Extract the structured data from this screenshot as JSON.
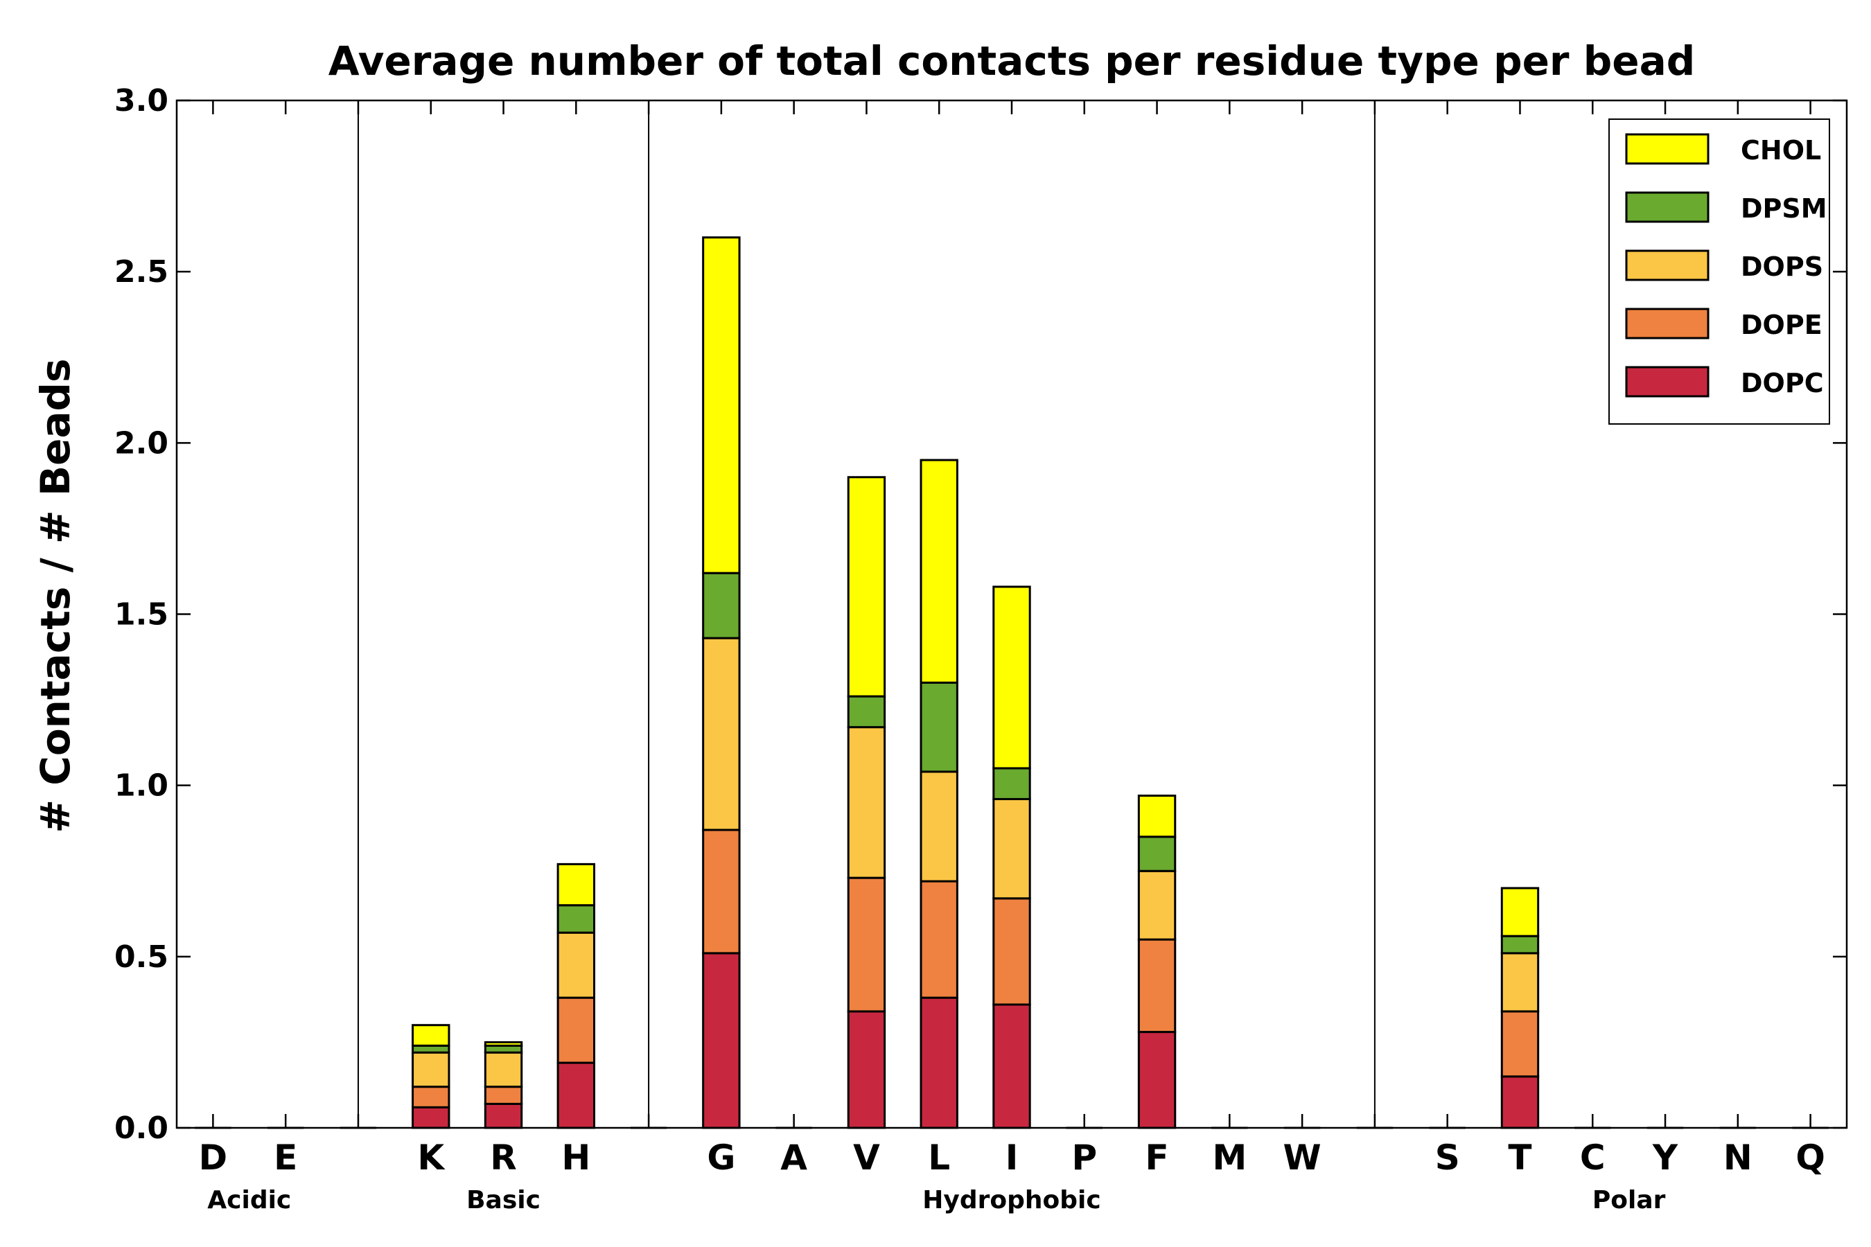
{
  "chart_data": {
    "type": "bar",
    "stacked": true,
    "title": "Average number of total contacts per residue type per bead",
    "ylabel": "# Contacts / # Beads",
    "xlabel": "",
    "ylim": [
      0,
      3.0
    ],
    "yticks": [
      "0.0",
      "0.5",
      "1.0",
      "1.5",
      "2.0",
      "2.5",
      "3.0"
    ],
    "grid": false,
    "legend_position": "top-right",
    "categories": [
      "D",
      "E",
      "",
      "K",
      "R",
      "H",
      "",
      "G",
      "A",
      "V",
      "L",
      "I",
      "P",
      "F",
      "M",
      "W",
      "",
      "S",
      "T",
      "C",
      "Y",
      "N",
      "Q"
    ],
    "groups": [
      {
        "name": "Acidic",
        "members": [
          "D",
          "E"
        ]
      },
      {
        "name": "Basic",
        "members": [
          "K",
          "R",
          "H"
        ]
      },
      {
        "name": "Hydrophobic",
        "members": [
          "G",
          "A",
          "V",
          "L",
          "I",
          "P",
          "F",
          "M",
          "W"
        ]
      },
      {
        "name": "Polar",
        "members": [
          "S",
          "T",
          "C",
          "Y",
          "N",
          "Q"
        ]
      }
    ],
    "series": [
      {
        "name": "DOPC",
        "color": "#c8283f",
        "values": [
          0,
          0,
          0,
          0.06,
          0.07,
          0.19,
          0,
          0.51,
          0,
          0.34,
          0.38,
          0.36,
          0,
          0.28,
          0,
          0,
          0,
          0,
          0.15,
          0,
          0,
          0,
          0
        ]
      },
      {
        "name": "DOPE",
        "color": "#ef8240",
        "values": [
          0,
          0,
          0,
          0.06,
          0.05,
          0.19,
          0,
          0.36,
          0,
          0.39,
          0.34,
          0.31,
          0,
          0.27,
          0,
          0,
          0,
          0,
          0.19,
          0,
          0,
          0,
          0
        ]
      },
      {
        "name": "DOPS",
        "color": "#fbc645",
        "values": [
          0,
          0,
          0,
          0.1,
          0.1,
          0.19,
          0,
          0.56,
          0,
          0.44,
          0.32,
          0.29,
          0,
          0.2,
          0,
          0,
          0,
          0,
          0.17,
          0,
          0,
          0,
          0
        ]
      },
      {
        "name": "DPSM",
        "color": "#6aaa2f",
        "values": [
          0,
          0,
          0,
          0.02,
          0.02,
          0.08,
          0,
          0.19,
          0,
          0.09,
          0.26,
          0.09,
          0,
          0.1,
          0,
          0,
          0,
          0,
          0.05,
          0,
          0,
          0,
          0
        ]
      },
      {
        "name": "CHOL",
        "color": "#ffff00",
        "values": [
          0,
          0,
          0,
          0.06,
          0.01,
          0.12,
          0,
          0.98,
          0,
          0.64,
          0.65,
          0.53,
          0,
          0.12,
          0,
          0,
          0,
          0,
          0.14,
          0,
          0,
          0,
          0
        ]
      }
    ],
    "legend_order": [
      "CHOL",
      "DPSM",
      "DOPS",
      "DOPE",
      "DOPC"
    ]
  }
}
